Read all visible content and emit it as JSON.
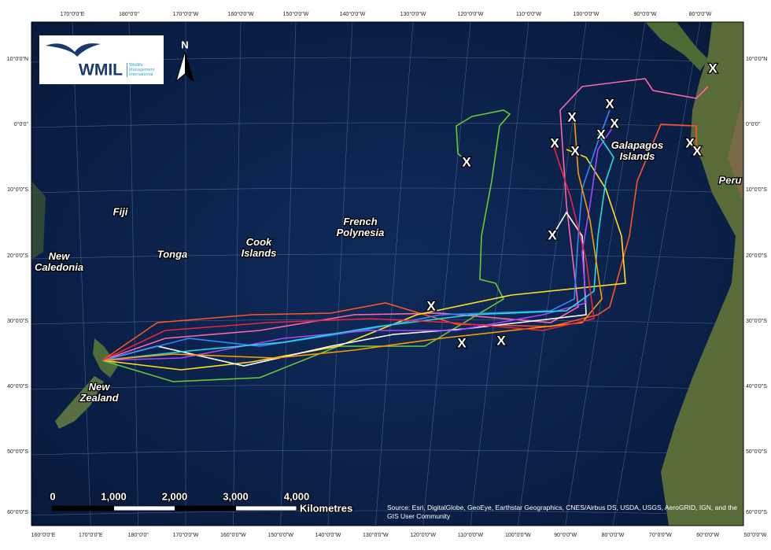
{
  "map": {
    "top_longitude_labels": [
      "170°0'0\"E",
      "180°0'0\"",
      "170°0'0\"W",
      "160°0'0\"W",
      "150°0'0\"W",
      "140°0'0\"W",
      "130°0'0\"W",
      "120°0'0\"W",
      "110°0'0\"W",
      "100°0'0\"W",
      "90°0'0\"W",
      "80°0'0\"W"
    ],
    "bottom_longitude_labels": [
      "160°0'0\"E",
      "170°0'0\"E",
      "180°0'0\"",
      "170°0'0\"W",
      "160°0'0\"W",
      "150°0'0\"W",
      "140°0'0\"W",
      "130°0'0\"W",
      "120°0'0\"W",
      "110°0'0\"W",
      "100°0'0\"W",
      "90°0'0\"W",
      "80°0'0\"W",
      "70°0'0\"W",
      "60°0'0\"W",
      "50°0'0\"W"
    ],
    "latitude_labels": [
      "10°0'0\"N",
      "0°0'0\"",
      "10°0'0\"S",
      "20°0'0\"S",
      "30°0'0\"S",
      "40°0'0\"S",
      "50°0'0\"S",
      "60°0'0\"S"
    ],
    "places": [
      "Fiji",
      "Tonga",
      "New Caledonia",
      "Cook Islands",
      "French Polynesia",
      "New Zealand",
      "Galapagos Islands",
      "Peru"
    ],
    "logo": {
      "name": "WMIL",
      "tagline": "Wildlife Management International"
    },
    "north_arrow": "N",
    "scale_bar": {
      "labels": [
        "0",
        "1,000",
        "2,000",
        "3,000",
        "4,000"
      ],
      "unit": "Kilometres"
    },
    "source": "Source: Esri, DigitalGlobe, GeoEye, Earthstar Geographics, CNES/Airbus DS, USDA, USGS, AeroGRID, IGN, and the GIS User Community"
  }
}
